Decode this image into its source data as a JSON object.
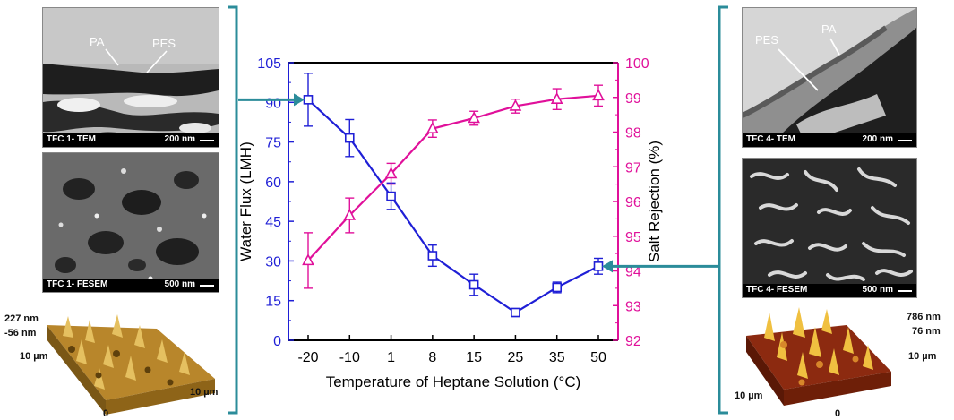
{
  "left_panel": {
    "tem_caption": "TFC 1- TEM",
    "tem_scale": "200 nm",
    "label_pa": "PA",
    "label_pes": "PES",
    "fesem_caption": "TFC 1- FESEM",
    "fesem_scale": "500 nm",
    "afm_top": "227 nm",
    "afm_bottom": "-56 nm",
    "afm_y": "10 µm",
    "afm_x": "10 µm",
    "afm_origin": "0"
  },
  "right_panel": {
    "tem_caption": "TFC 4- TEM",
    "tem_scale": "200 nm",
    "label_pa": "PA",
    "label_pes": "PES",
    "fesem_caption": "TFC 4- FESEM",
    "fesem_scale": "500 nm",
    "afm_top": "786 nm",
    "afm_bottom": "76 nm",
    "afm_y": "10 µm",
    "afm_x": "10 µm",
    "afm_origin": "0"
  },
  "colors": {
    "flux": "#1f1fd6",
    "rejection": "#e0109a",
    "bracket": "#2b8c9a",
    "axis": "#000000"
  },
  "chart_data": {
    "type": "line",
    "categories": [
      "-20",
      "-10",
      "1",
      "8",
      "15",
      "25",
      "35",
      "50"
    ],
    "xlabel": "Temperature of Heptane Solution (°C)",
    "grid": false,
    "series": [
      {
        "name": "Water Flux (LMH)",
        "axis": "left",
        "marker": "square",
        "values": [
          91,
          76.5,
          54.5,
          32,
          21,
          10.5,
          20,
          28
        ],
        "errors": [
          10,
          7,
          5,
          4,
          4,
          1.5,
          2,
          3
        ]
      },
      {
        "name": "Salt Rejection (%)",
        "axis": "right",
        "marker": "triangle",
        "values": [
          94.3,
          95.6,
          96.8,
          98.1,
          98.4,
          98.75,
          98.95,
          99.05
        ],
        "errors": [
          0.8,
          0.5,
          0.3,
          0.25,
          0.2,
          0.2,
          0.3,
          0.3
        ]
      }
    ],
    "y_left": {
      "label": "Water Flux (LMH)",
      "ylim": [
        0,
        105
      ],
      "ticks": [
        "0",
        "15",
        "30",
        "45",
        "60",
        "75",
        "90",
        "105"
      ]
    },
    "y_right": {
      "label": "Salt Rejection (%)",
      "ylim": [
        92,
        100
      ],
      "ticks": [
        "92",
        "93",
        "94",
        "95",
        "96",
        "97",
        "98",
        "99",
        "100"
      ]
    }
  }
}
